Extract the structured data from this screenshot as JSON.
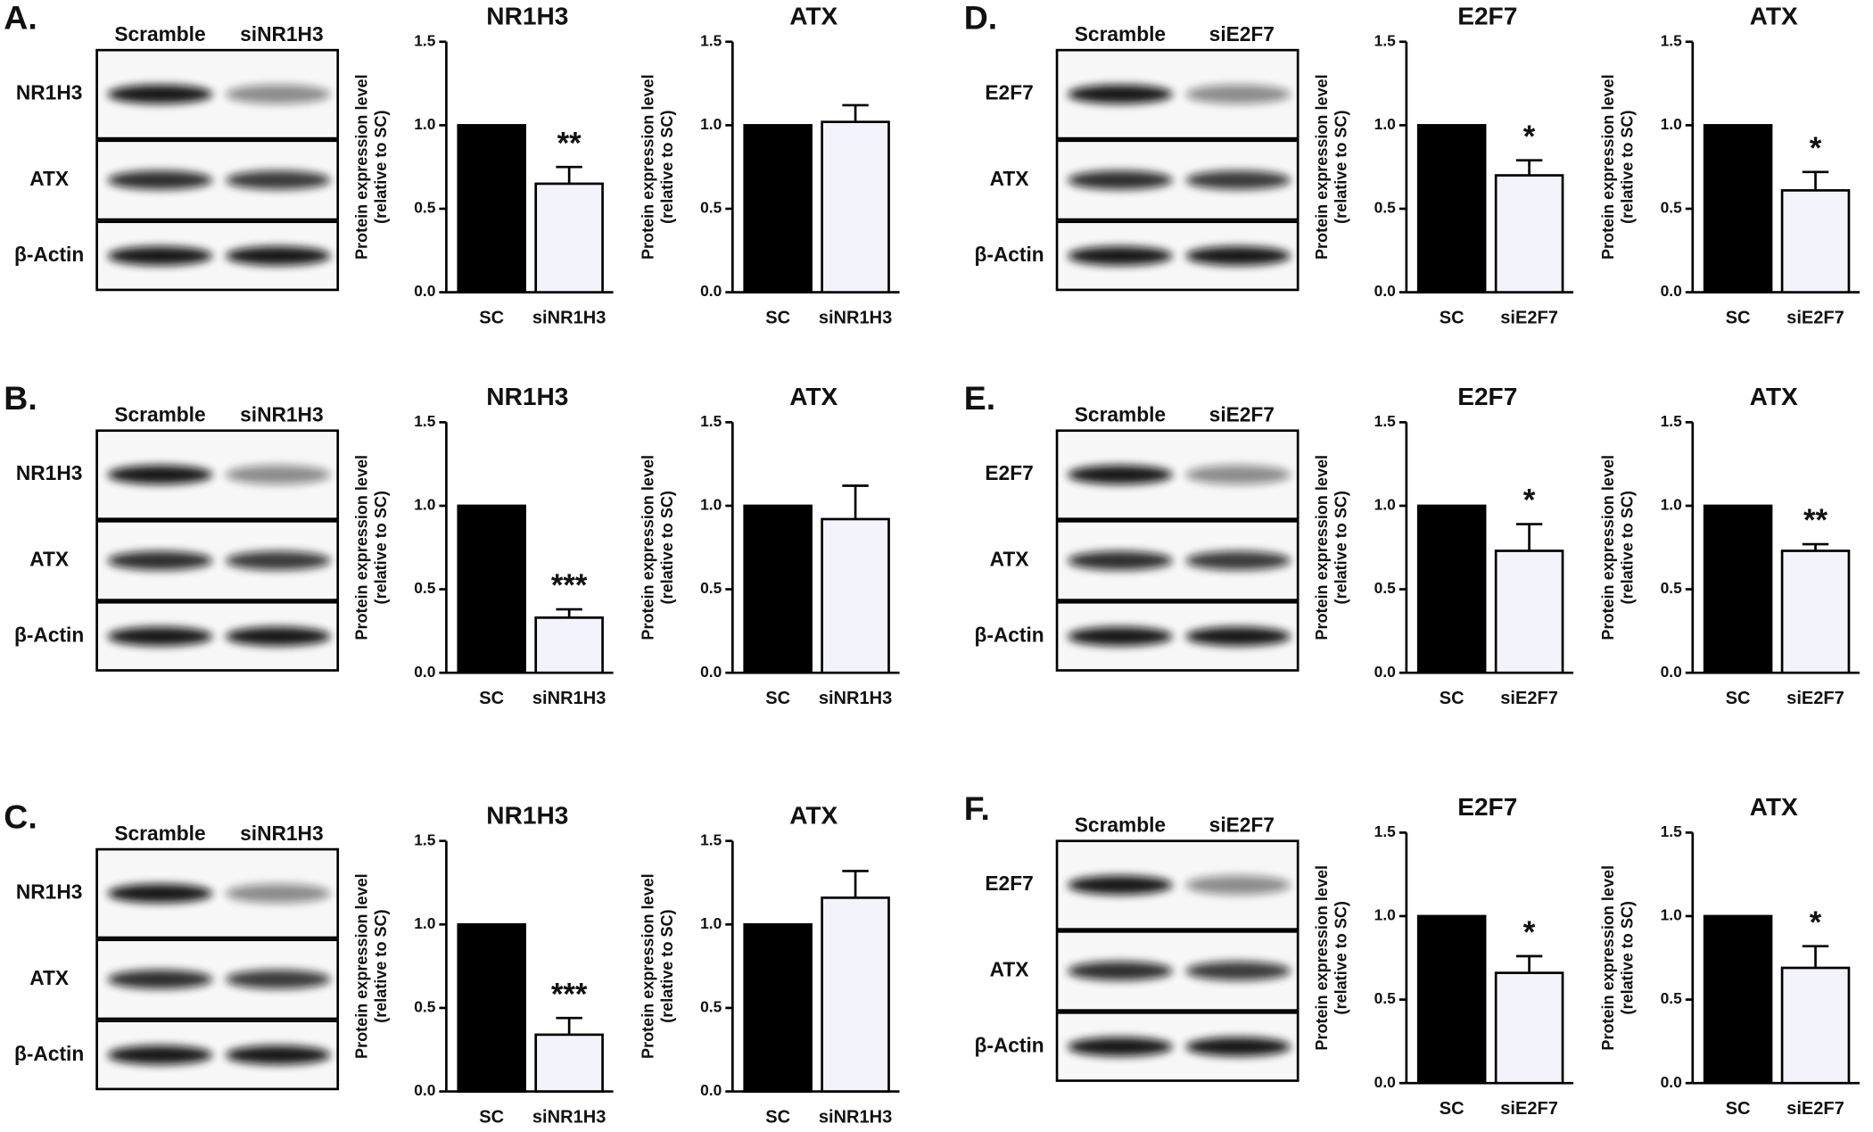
{
  "panels": [
    {
      "label": "A.",
      "lanes": [
        "Scramble",
        "siNR1H3"
      ],
      "rows": [
        "NR1H3",
        "ATX",
        "β-Actin"
      ]
    },
    {
      "label": "B.",
      "lanes": [
        "Scramble",
        "siNR1H3"
      ],
      "rows": [
        "NR1H3",
        "ATX",
        "β-Actin"
      ]
    },
    {
      "label": "C.",
      "lanes": [
        "Scramble",
        "siNR1H3"
      ],
      "rows": [
        "NR1H3",
        "ATX",
        "β-Actin"
      ]
    },
    {
      "label": "D.",
      "lanes": [
        "Scramble",
        "siE2F7"
      ],
      "rows": [
        "E2F7",
        "ATX",
        "β-Actin"
      ]
    },
    {
      "label": "E.",
      "lanes": [
        "Scramble",
        "siE2F7"
      ],
      "rows": [
        "E2F7",
        "ATX",
        "β-Actin"
      ]
    },
    {
      "label": "F.",
      "lanes": [
        "Scramble",
        "siE2F7"
      ],
      "rows": [
        "E2F7",
        "ATX",
        "β-Actin"
      ]
    }
  ],
  "chart_data": [
    {
      "type": "bar",
      "title": "NR1H3",
      "ylabel": [
        "Protein expression level",
        "(relative to SC)"
      ],
      "categories": [
        "SC",
        "siNR1H3"
      ],
      "values": [
        1.0,
        0.65
      ],
      "errors": [
        null,
        0.1
      ],
      "colors": [
        "#000000",
        "#f3f3fb"
      ],
      "annotation": "**",
      "ylim": [
        0,
        1.5
      ],
      "yticks": [
        {
          "value": 0,
          "label": "0.0"
        },
        0.5,
        {
          "value": 1,
          "label": "1.0"
        },
        1.5
      ]
    },
    {
      "type": "bar",
      "title": "ATX",
      "ylabel": [
        "Protein expression level",
        "(relative to SC)"
      ],
      "categories": [
        "SC",
        "siNR1H3"
      ],
      "values": [
        1.0,
        1.02
      ],
      "errors": [
        null,
        0.1
      ],
      "colors": [
        "#000000",
        "#f3f3fb"
      ],
      "ylim": [
        0,
        1.5
      ],
      "yticks": [
        {
          "value": 0,
          "label": "0.0"
        },
        0.5,
        {
          "value": 1,
          "label": "1.0"
        },
        1.5
      ]
    },
    {
      "type": "bar",
      "title": "NR1H3",
      "ylabel": [
        "Protein expression level",
        "(relative to SC)"
      ],
      "categories": [
        "SC",
        "siNR1H3"
      ],
      "values": [
        1.0,
        0.33
      ],
      "errors": [
        null,
        0.05
      ],
      "colors": [
        "#000000",
        "#f3f3fb"
      ],
      "annotation": "***",
      "ylim": [
        0,
        1.5
      ],
      "yticks": [
        {
          "value": 0,
          "label": "0.0"
        },
        0.5,
        {
          "value": 1,
          "label": "1.0"
        },
        1.5
      ]
    },
    {
      "type": "bar",
      "title": "ATX",
      "ylabel": [
        "Protein expression level",
        "(relative to SC)"
      ],
      "categories": [
        "SC",
        "siNR1H3"
      ],
      "values": [
        1.0,
        0.92
      ],
      "errors": [
        null,
        0.2
      ],
      "colors": [
        "#000000",
        "#f3f3fb"
      ],
      "ylim": [
        0,
        1.5
      ],
      "yticks": [
        {
          "value": 0,
          "label": "0.0"
        },
        0.5,
        {
          "value": 1,
          "label": "1.0"
        },
        1.5
      ]
    },
    {
      "type": "bar",
      "title": "NR1H3",
      "ylabel": [
        "Protein expression level",
        "(relative to SC)"
      ],
      "categories": [
        "SC",
        "siNR1H3"
      ],
      "values": [
        1.0,
        0.34
      ],
      "errors": [
        null,
        0.1
      ],
      "colors": [
        "#000000",
        "#f3f3fb"
      ],
      "annotation": "***",
      "ylim": [
        0,
        1.5
      ],
      "yticks": [
        {
          "value": 0,
          "label": "0.0"
        },
        0.5,
        {
          "value": 1,
          "label": "1.0"
        },
        1.5
      ]
    },
    {
      "type": "bar",
      "title": "ATX",
      "ylabel": [
        "Protein expression level",
        "(relative to SC)"
      ],
      "categories": [
        "SC",
        "siNR1H3"
      ],
      "values": [
        1.0,
        1.16
      ],
      "errors": [
        null,
        0.16
      ],
      "colors": [
        "#000000",
        "#f3f3fb"
      ],
      "ylim": [
        0,
        1.5
      ],
      "yticks": [
        {
          "value": 0,
          "label": "0.0"
        },
        0.5,
        {
          "value": 1,
          "label": "1.0"
        },
        1.5
      ]
    },
    {
      "type": "bar",
      "title": "E2F7",
      "ylabel": [
        "Protein expression level",
        "(relative to SC)"
      ],
      "categories": [
        "SC",
        "siE2F7"
      ],
      "values": [
        1.0,
        0.7
      ],
      "errors": [
        null,
        0.09
      ],
      "colors": [
        "#000000",
        "#f3f3fb"
      ],
      "annotation": "*",
      "ylim": [
        0,
        1.5
      ],
      "yticks": [
        {
          "value": 0,
          "label": "0.0"
        },
        0.5,
        {
          "value": 1,
          "label": "1.0"
        },
        1.5
      ]
    },
    {
      "type": "bar",
      "title": "ATX",
      "ylabel": [
        "Protein expression level",
        "(relative to SC)"
      ],
      "categories": [
        "SC",
        "siE2F7"
      ],
      "values": [
        1.0,
        0.61
      ],
      "errors": [
        null,
        0.11
      ],
      "colors": [
        "#000000",
        "#f3f3fb"
      ],
      "annotation": "*",
      "ylim": [
        0,
        1.5
      ],
      "yticks": [
        {
          "value": 0,
          "label": "0.0"
        },
        0.5,
        {
          "value": 1,
          "label": "1.0"
        },
        1.5
      ]
    },
    {
      "type": "bar",
      "title": "E2F7",
      "ylabel": [
        "Protein expression level",
        "(relative to SC)"
      ],
      "categories": [
        "SC",
        "siE2F7"
      ],
      "values": [
        1.0,
        0.73
      ],
      "errors": [
        null,
        0.16
      ],
      "colors": [
        "#000000",
        "#f3f3fb"
      ],
      "annotation": "*",
      "ylim": [
        0,
        1.5
      ],
      "yticks": [
        {
          "value": 0,
          "label": "0.0"
        },
        0.5,
        {
          "value": 1,
          "label": "1.0"
        },
        1.5
      ]
    },
    {
      "type": "bar",
      "title": "ATX",
      "ylabel": [
        "Protein expression level",
        "(relative to SC)"
      ],
      "categories": [
        "SC",
        "siE2F7"
      ],
      "values": [
        1.0,
        0.73
      ],
      "errors": [
        null,
        0.04
      ],
      "colors": [
        "#000000",
        "#f3f3fb"
      ],
      "annotation": "**",
      "ylim": [
        0,
        1.5
      ],
      "yticks": [
        {
          "value": 0,
          "label": "0.0"
        },
        0.5,
        {
          "value": 1,
          "label": "1.0"
        },
        1.5
      ]
    },
    {
      "type": "bar",
      "title": "E2F7",
      "ylabel": [
        "Protein expression level",
        "(relative to SC)"
      ],
      "categories": [
        "SC",
        "siE2F7"
      ],
      "values": [
        1.0,
        0.66
      ],
      "errors": [
        null,
        0.1
      ],
      "colors": [
        "#000000",
        "#f3f3fb"
      ],
      "annotation": "*",
      "ylim": [
        0,
        1.5
      ],
      "yticks": [
        {
          "value": 0,
          "label": "0.0"
        },
        0.5,
        {
          "value": 1,
          "label": "1.0"
        },
        1.5
      ]
    },
    {
      "type": "bar",
      "title": "ATX",
      "ylabel": [
        "Protein expression level",
        "(relative to SC)"
      ],
      "categories": [
        "SC",
        "siE2F7"
      ],
      "values": [
        1.0,
        0.69
      ],
      "errors": [
        null,
        0.13
      ],
      "colors": [
        "#000000",
        "#f3f3fb"
      ],
      "annotation": "*",
      "ylim": [
        0,
        1.5
      ],
      "yticks": [
        {
          "value": 0,
          "label": "0.0"
        },
        0.5,
        {
          "value": 1,
          "label": "1.0"
        },
        1.5
      ]
    }
  ]
}
